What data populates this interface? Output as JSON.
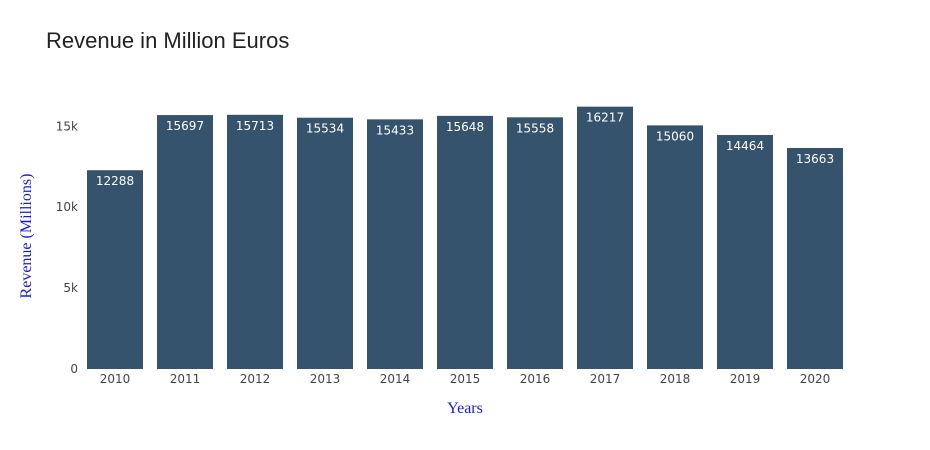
{
  "colors": {
    "bar": "#36536d",
    "axis_title": "#1a1adb"
  },
  "chart_data": {
    "type": "bar",
    "title": "Revenue in Million Euros",
    "xlabel": "Years",
    "ylabel": "Revenue (Millions)",
    "categories": [
      "2010",
      "2011",
      "2012",
      "2013",
      "2014",
      "2015",
      "2016",
      "2017",
      "2018",
      "2019",
      "2020"
    ],
    "values": [
      12288,
      15697,
      15713,
      15534,
      15433,
      15648,
      15558,
      16217,
      15060,
      14464,
      13663
    ],
    "ylim": [
      0,
      17000
    ],
    "yticks": [
      0,
      5000,
      10000,
      15000
    ],
    "ytick_labels": [
      "0",
      "5k",
      "10k",
      "15k"
    ],
    "grid": false,
    "legend": "none"
  }
}
